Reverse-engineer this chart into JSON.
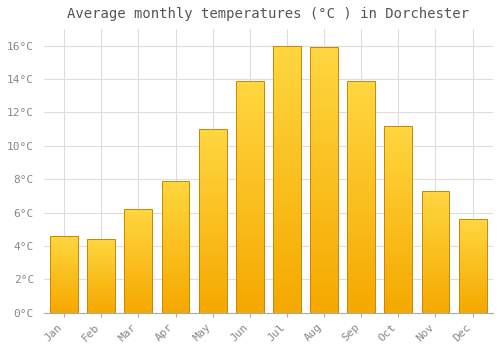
{
  "title": "Average monthly temperatures (°C ) in Dorchester",
  "months": [
    "Jan",
    "Feb",
    "Mar",
    "Apr",
    "May",
    "Jun",
    "Jul",
    "Aug",
    "Sep",
    "Oct",
    "Nov",
    "Dec"
  ],
  "temperatures": [
    4.6,
    4.4,
    6.2,
    7.9,
    11.0,
    13.9,
    16.0,
    15.9,
    13.9,
    11.2,
    7.3,
    5.6
  ],
  "bar_color_bottom": "#F5A800",
  "bar_color_top": "#FFD740",
  "bar_edge_color": "#C8860A",
  "background_color": "#FFFFFF",
  "grid_color": "#DDDDDD",
  "ylim": [
    0,
    17
  ],
  "ytick_step": 2,
  "title_fontsize": 10,
  "tick_fontsize": 8,
  "font_family": "monospace"
}
